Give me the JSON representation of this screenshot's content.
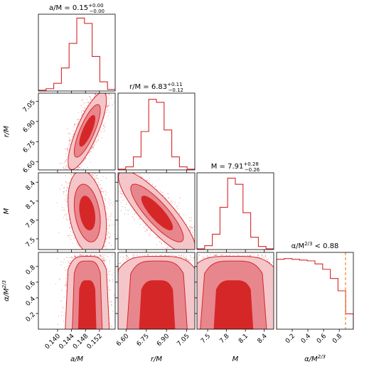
{
  "chart_data": {
    "type": "corner",
    "color": "#d62728",
    "contour_fills": [
      "#f4c6c9",
      "#e8868d",
      "#d62728"
    ],
    "truth_line_color": "#ff7f0e",
    "parameters": [
      {
        "label": "a/M",
        "range": [
          0.1345,
          0.1565
        ],
        "ticks": [
          "0.140",
          "0.144",
          "0.148",
          "0.152"
        ],
        "tick_values": [
          0.14,
          0.144,
          0.148,
          0.152
        ],
        "mean": 0.1485,
        "sigma": 0.0022
      },
      {
        "label": "r/M",
        "range": [
          6.54,
          7.11
        ],
        "ticks": [
          "6.60",
          "6.75",
          "6.90",
          "7.05"
        ],
        "tick_values": [
          6.6,
          6.75,
          6.9,
          7.05
        ],
        "mean": 6.83,
        "sigma": 0.115
      },
      {
        "label": "M",
        "range": [
          7.33,
          8.55
        ],
        "ticks": [
          "7.5",
          "7.8",
          "8.1",
          "8.4"
        ],
        "tick_values": [
          7.5,
          7.8,
          8.1,
          8.4
        ],
        "mean": 7.91,
        "sigma": 0.27
      },
      {
        "label": "α/M^{2/3}",
        "range": [
          0.0,
          0.98
        ],
        "ticks": [
          "0.2",
          "0.4",
          "0.6",
          "0.8"
        ],
        "tick_values": [
          0.2,
          0.4,
          0.6,
          0.8
        ],
        "mean": null,
        "sigma": null
      }
    ],
    "titles": [
      {
        "base": "a/M = 0.15",
        "sup": "+0.00",
        "sub": "−0.00"
      },
      {
        "base": "r/M = 6.83",
        "sup": "+0.11",
        "sub": "−0.12"
      },
      {
        "base": "M = 7.91",
        "sup": "+0.28",
        "sub": "−0.26"
      },
      {
        "base": "α/M",
        "pow": "2/3",
        "tail": " < 0.88"
      }
    ],
    "xlabels": [
      "a/M",
      "r/M",
      "M",
      "α/M^{2/3}"
    ],
    "ylabels": [
      "r/M",
      "M",
      "α/M^{2/3}"
    ],
    "upper_limit": {
      "parameter": "α/M^{2/3}",
      "value": 0.88
    },
    "histograms": [
      {
        "parameter": "a/M",
        "edges": [
          0.1345,
          0.1367,
          0.1389,
          0.1411,
          0.1433,
          0.1455,
          0.1477,
          0.1499,
          0.1521,
          0.1543,
          0.1565
        ],
        "counts": [
          0.01,
          0.03,
          0.1,
          0.3,
          0.62,
          0.95,
          0.88,
          0.45,
          0.12,
          0.02
        ]
      },
      {
        "parameter": "r/M",
        "edges": [
          6.54,
          6.597,
          6.654,
          6.711,
          6.768,
          6.825,
          6.882,
          6.939,
          6.996,
          7.053,
          7.11
        ],
        "counts": [
          0.01,
          0.04,
          0.17,
          0.5,
          0.92,
          0.88,
          0.52,
          0.17,
          0.04,
          0.01
        ]
      },
      {
        "parameter": "M",
        "edges": [
          7.33,
          7.452,
          7.574,
          7.696,
          7.818,
          7.94,
          8.062,
          8.184,
          8.306,
          8.428,
          8.55
        ],
        "counts": [
          0.01,
          0.05,
          0.2,
          0.55,
          0.93,
          0.85,
          0.48,
          0.16,
          0.04,
          0.01
        ]
      },
      {
        "parameter": "α/M^{2/3}",
        "edges": [
          0.0,
          0.098,
          0.196,
          0.294,
          0.392,
          0.49,
          0.588,
          0.686,
          0.784,
          0.882,
          0.98
        ],
        "counts": [
          0.91,
          0.92,
          0.91,
          0.9,
          0.89,
          0.85,
          0.78,
          0.66,
          0.5,
          0.2
        ]
      }
    ]
  }
}
